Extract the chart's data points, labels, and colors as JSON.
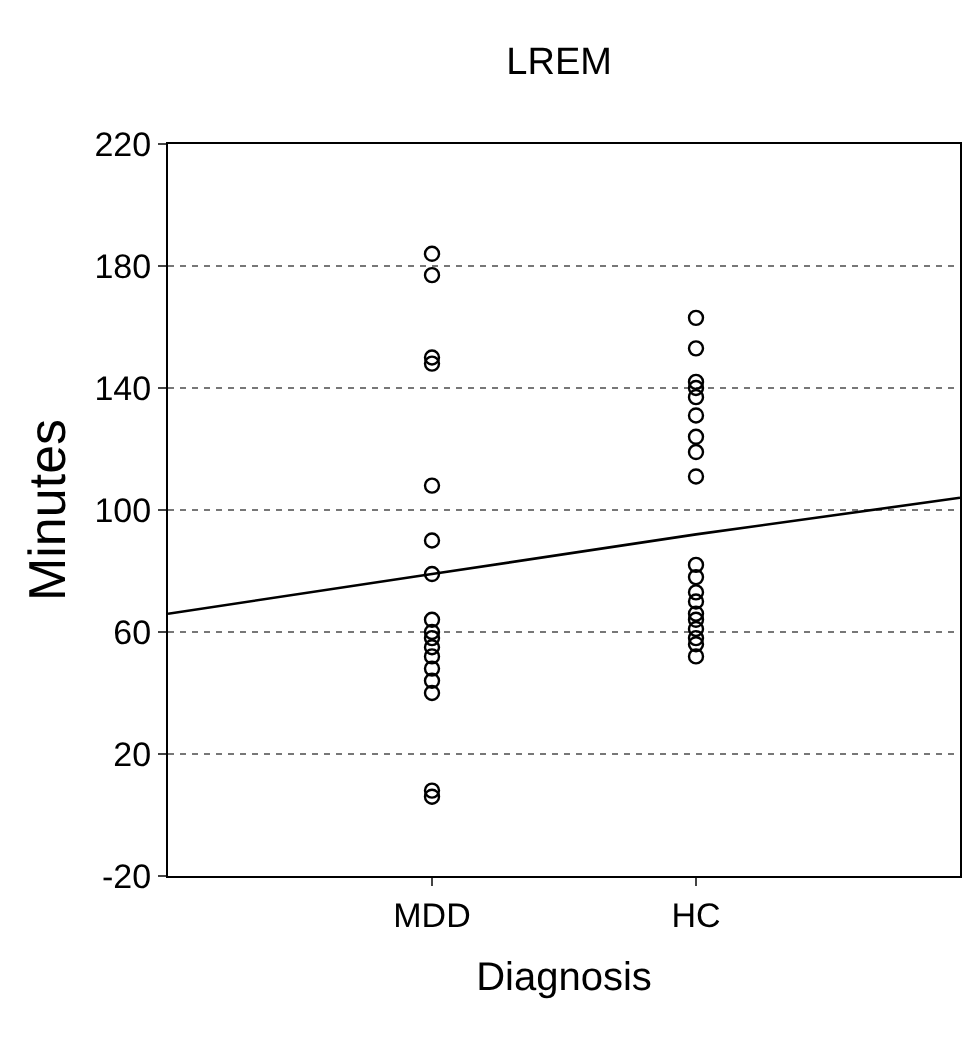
{
  "chart_data": {
    "type": "scatter",
    "title": "LREM",
    "xlabel": "Diagnosis",
    "ylabel": "Minutes",
    "categories": [
      null,
      "MDD",
      "HC",
      null
    ],
    "ylim": [
      -20,
      220
    ],
    "yticks": [
      -20,
      20,
      60,
      100,
      140,
      180,
      220
    ],
    "grid": "y",
    "series": [
      {
        "color": "#000000",
        "marker": "circle",
        "x": [
          "MDD",
          "MDD",
          "MDD",
          "MDD",
          "MDD",
          "MDD",
          "MDD",
          "MDD",
          "MDD",
          "MDD",
          "MDD",
          "MDD",
          "MDD",
          "MDD",
          "MDD",
          "MDD",
          "MDD",
          "HC",
          "HC",
          "HC",
          "HC",
          "HC",
          "HC",
          "HC",
          "HC",
          "HC",
          "HC",
          "HC",
          "HC",
          "HC",
          "HC",
          "HC",
          "HC",
          "HC",
          "HC",
          "HC"
        ],
        "values": [
          184,
          177,
          150,
          148,
          108,
          90,
          79,
          64,
          60,
          58,
          55,
          52,
          48,
          44,
          40,
          8,
          6,
          163,
          153,
          142,
          140,
          137,
          131,
          124,
          119,
          111,
          82,
          78,
          73,
          70,
          66,
          64,
          61,
          58,
          56,
          52
        ]
      },
      {
        "type": "line",
        "color": "#000000",
        "line_style": "solid",
        "values": [
          66,
          79,
          92,
          104
        ]
      }
    ]
  }
}
